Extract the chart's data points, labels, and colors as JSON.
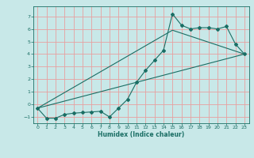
{
  "xlabel": "Humidex (Indice chaleur)",
  "ylabel": "",
  "xlim": [
    -0.5,
    23.5
  ],
  "ylim": [
    -1.5,
    7.8
  ],
  "xticks": [
    0,
    1,
    2,
    3,
    4,
    5,
    6,
    7,
    8,
    9,
    10,
    11,
    12,
    13,
    14,
    15,
    16,
    17,
    18,
    19,
    20,
    21,
    22,
    23
  ],
  "yticks": [
    -1,
    0,
    1,
    2,
    3,
    4,
    5,
    6,
    7
  ],
  "bg_color": "#c8e8e8",
  "grid_color": "#e8a0a0",
  "line_color": "#1a6e64",
  "line1_x": [
    0,
    1,
    2,
    3,
    4,
    5,
    6,
    7,
    8,
    9,
    10,
    11,
    12,
    13,
    14,
    15,
    16,
    17,
    18,
    19,
    20,
    21,
    22,
    23
  ],
  "line1_y": [
    -0.3,
    -1.1,
    -1.1,
    -0.8,
    -0.7,
    -0.65,
    -0.6,
    -0.55,
    -1.0,
    -0.3,
    0.4,
    1.75,
    2.7,
    3.5,
    4.3,
    7.2,
    6.3,
    6.0,
    6.1,
    6.1,
    6.0,
    6.2,
    4.8,
    4.0
  ],
  "line2_x": [
    0,
    23
  ],
  "line2_y": [
    -0.3,
    4.0
  ],
  "line3_x": [
    0,
    15,
    23
  ],
  "line3_y": [
    -0.3,
    5.9,
    4.0
  ]
}
